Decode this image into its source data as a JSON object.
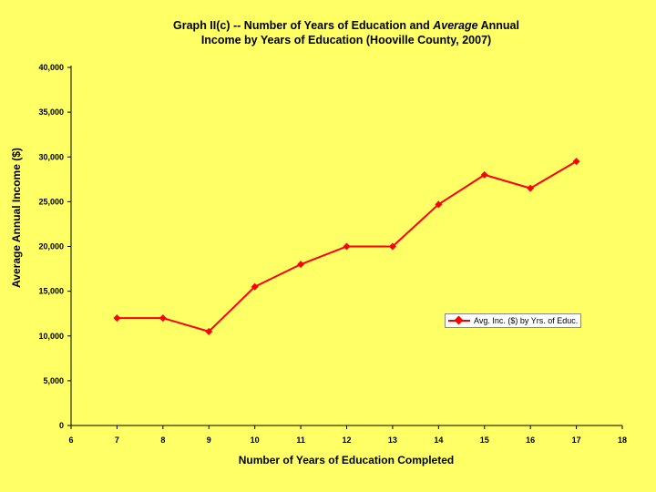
{
  "chart_data": {
    "type": "line",
    "title_part1": "Graph II(c) -- Number of Years of Education and ",
    "title_emphasis": "Average",
    "title_part2": " Annual",
    "title_line2": "Income by Years of Education (Hooville County, 2007)",
    "xlabel": "Number of Years of Education Completed",
    "ylabel": "Average Annual Income ($)",
    "xlim": [
      6,
      18
    ],
    "ylim": [
      0,
      40000
    ],
    "x_ticks": [
      "6",
      "7",
      "8",
      "9",
      "10",
      "11",
      "12",
      "13",
      "14",
      "15",
      "16",
      "17",
      "18"
    ],
    "y_ticks": [
      "0",
      "5,000",
      "10,000",
      "15,000",
      "20,000",
      "25,000",
      "30,000",
      "35,000",
      "40,000"
    ],
    "grid": false,
    "legend_position": "right",
    "series": [
      {
        "name": "Avg. Inc. ($) by Yrs. of Educ.",
        "color": "#FF0000",
        "x": [
          7,
          8,
          9,
          10,
          11,
          12,
          13,
          14,
          15,
          16,
          17
        ],
        "values": [
          12000,
          12000,
          10500,
          15500,
          18000,
          20000,
          20000,
          24700,
          28000,
          26500,
          29500
        ]
      }
    ]
  }
}
